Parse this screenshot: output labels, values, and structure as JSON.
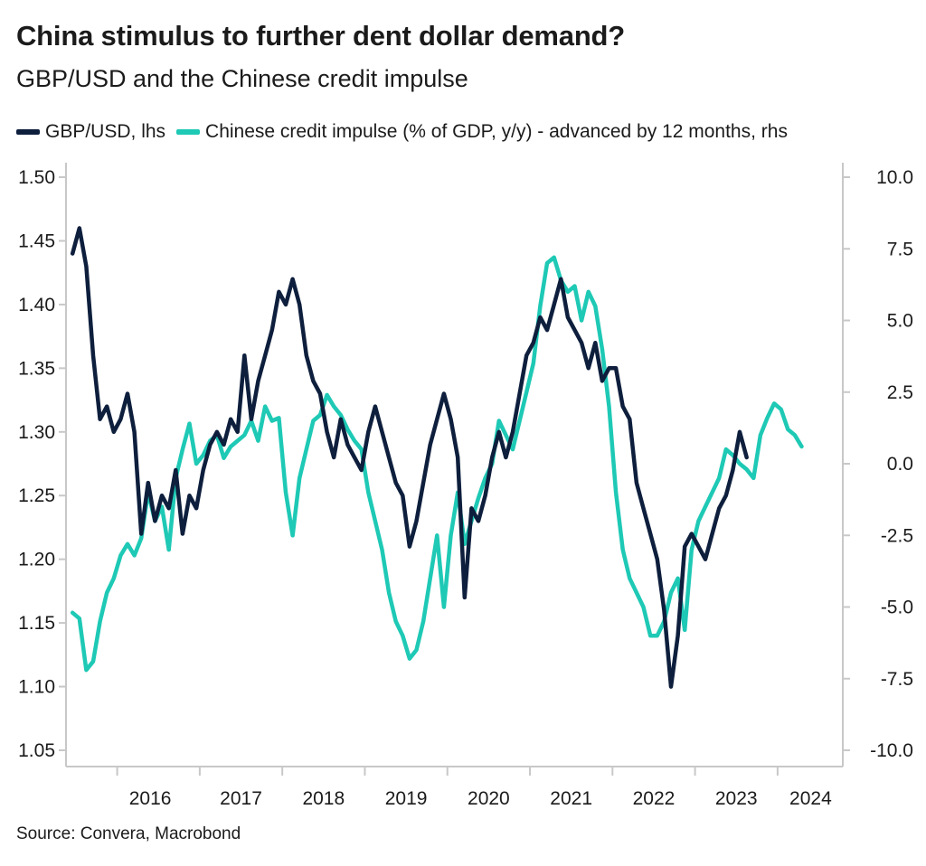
{
  "chart_data": {
    "type": "line",
    "title": "China stimulus to further dent dollar demand?",
    "subtitle": "GBP/USD and the Chinese credit impulse",
    "source": "Source: Convera, Macrobond",
    "grid": false,
    "legend_position": "top",
    "colors": {
      "gbpusd": "#0e1f3d",
      "impulse": "#1ec9b5",
      "axis": "#c8c8c8",
      "text": "#1b1b1b"
    },
    "x_axis": {
      "type": "date",
      "range": [
        "2015-06",
        "2024-12"
      ],
      "tick_labels": [
        "2016",
        "2017",
        "2018",
        "2019",
        "2020",
        "2021",
        "2022",
        "2023",
        "2024"
      ]
    },
    "y_left": {
      "label": "lhs",
      "range": [
        1.05,
        1.5
      ],
      "tick_labels": [
        "1.50",
        "1.45",
        "1.40",
        "1.35",
        "1.30",
        "1.25",
        "1.20",
        "1.15",
        "1.10",
        "1.05"
      ]
    },
    "y_right": {
      "label": "rhs",
      "range": [
        -10,
        10
      ],
      "tick_labels": [
        "10.0",
        "7.5",
        "5.0",
        "2.5",
        "0.0",
        "-2.5",
        "-5.0",
        "-7.5",
        "-10.0"
      ]
    },
    "series": [
      {
        "name": "GBP/USD, lhs",
        "axis": "left",
        "points": [
          [
            "2015-06",
            1.44
          ],
          [
            "2015-07",
            1.46
          ],
          [
            "2015-08",
            1.43
          ],
          [
            "2015-09",
            1.36
          ],
          [
            "2015-10",
            1.31
          ],
          [
            "2015-11",
            1.32
          ],
          [
            "2015-12",
            1.3
          ],
          [
            "2016-01",
            1.31
          ],
          [
            "2016-02",
            1.33
          ],
          [
            "2016-03",
            1.3
          ],
          [
            "2016-04",
            1.22
          ],
          [
            "2016-05",
            1.26
          ],
          [
            "2016-06",
            1.23
          ],
          [
            "2016-07",
            1.25
          ],
          [
            "2016-08",
            1.24
          ],
          [
            "2016-09",
            1.27
          ],
          [
            "2016-10",
            1.22
          ],
          [
            "2016-11",
            1.25
          ],
          [
            "2016-12",
            1.24
          ],
          [
            "2017-01",
            1.27
          ],
          [
            "2017-02",
            1.29
          ],
          [
            "2017-03",
            1.3
          ],
          [
            "2017-04",
            1.29
          ],
          [
            "2017-05",
            1.31
          ],
          [
            "2017-06",
            1.3
          ],
          [
            "2017-07",
            1.36
          ],
          [
            "2017-08",
            1.31
          ],
          [
            "2017-09",
            1.34
          ],
          [
            "2017-10",
            1.36
          ],
          [
            "2017-11",
            1.38
          ],
          [
            "2017-12",
            1.41
          ],
          [
            "2018-01",
            1.4
          ],
          [
            "2018-02",
            1.42
          ],
          [
            "2018-03",
            1.4
          ],
          [
            "2018-04",
            1.36
          ],
          [
            "2018-05",
            1.34
          ],
          [
            "2018-06",
            1.33
          ],
          [
            "2018-07",
            1.3
          ],
          [
            "2018-08",
            1.28
          ],
          [
            "2018-09",
            1.31
          ],
          [
            "2018-10",
            1.29
          ],
          [
            "2018-11",
            1.28
          ],
          [
            "2018-12",
            1.27
          ],
          [
            "2019-01",
            1.3
          ],
          [
            "2019-02",
            1.32
          ],
          [
            "2019-03",
            1.3
          ],
          [
            "2019-04",
            1.28
          ],
          [
            "2019-05",
            1.26
          ],
          [
            "2019-06",
            1.25
          ],
          [
            "2019-07",
            1.21
          ],
          [
            "2019-08",
            1.23
          ],
          [
            "2019-09",
            1.26
          ],
          [
            "2019-10",
            1.29
          ],
          [
            "2019-11",
            1.31
          ],
          [
            "2019-12",
            1.33
          ],
          [
            "2020-01",
            1.31
          ],
          [
            "2020-02",
            1.28
          ],
          [
            "2020-03",
            1.17
          ],
          [
            "2020-04",
            1.24
          ],
          [
            "2020-05",
            1.23
          ],
          [
            "2020-06",
            1.25
          ],
          [
            "2020-07",
            1.28
          ],
          [
            "2020-08",
            1.3
          ],
          [
            "2020-09",
            1.28
          ],
          [
            "2020-10",
            1.3
          ],
          [
            "2020-11",
            1.33
          ],
          [
            "2020-12",
            1.36
          ],
          [
            "2021-01",
            1.37
          ],
          [
            "2021-02",
            1.39
          ],
          [
            "2021-03",
            1.38
          ],
          [
            "2021-04",
            1.4
          ],
          [
            "2021-05",
            1.42
          ],
          [
            "2021-06",
            1.39
          ],
          [
            "2021-07",
            1.38
          ],
          [
            "2021-08",
            1.37
          ],
          [
            "2021-09",
            1.35
          ],
          [
            "2021-10",
            1.37
          ],
          [
            "2021-11",
            1.34
          ],
          [
            "2021-12",
            1.35
          ],
          [
            "2022-01",
            1.35
          ],
          [
            "2022-02",
            1.32
          ],
          [
            "2022-03",
            1.31
          ],
          [
            "2022-04",
            1.26
          ],
          [
            "2022-05",
            1.24
          ],
          [
            "2022-06",
            1.22
          ],
          [
            "2022-07",
            1.2
          ],
          [
            "2022-08",
            1.16
          ],
          [
            "2022-09",
            1.1
          ],
          [
            "2022-10",
            1.14
          ],
          [
            "2022-11",
            1.21
          ],
          [
            "2022-12",
            1.22
          ],
          [
            "2023-01",
            1.21
          ],
          [
            "2023-02",
            1.2
          ],
          [
            "2023-03",
            1.22
          ],
          [
            "2023-04",
            1.24
          ],
          [
            "2023-05",
            1.25
          ],
          [
            "2023-06",
            1.27
          ],
          [
            "2023-07",
            1.3
          ],
          [
            "2023-08",
            1.28
          ]
        ]
      },
      {
        "name": "Chinese credit impulse (% of GDP, y/y) - advanced by 12 months, rhs",
        "axis": "right",
        "points": [
          [
            "2015-06",
            -5.2
          ],
          [
            "2015-07",
            -5.4
          ],
          [
            "2015-08",
            -7.2
          ],
          [
            "2015-09",
            -6.9
          ],
          [
            "2015-10",
            -5.5
          ],
          [
            "2015-11",
            -4.5
          ],
          [
            "2015-12",
            -4.0
          ],
          [
            "2016-01",
            -3.2
          ],
          [
            "2016-02",
            -2.8
          ],
          [
            "2016-03",
            -3.2
          ],
          [
            "2016-04",
            -2.6
          ],
          [
            "2016-05",
            -1.0
          ],
          [
            "2016-06",
            -2.0
          ],
          [
            "2016-07",
            -1.5
          ],
          [
            "2016-08",
            -3.0
          ],
          [
            "2016-09",
            -0.5
          ],
          [
            "2016-10",
            0.5
          ],
          [
            "2016-11",
            1.4
          ],
          [
            "2016-12",
            0.0
          ],
          [
            "2017-01",
            0.3
          ],
          [
            "2017-02",
            0.8
          ],
          [
            "2017-03",
            1.0
          ],
          [
            "2017-04",
            0.2
          ],
          [
            "2017-05",
            0.6
          ],
          [
            "2017-06",
            0.8
          ],
          [
            "2017-07",
            1.0
          ],
          [
            "2017-08",
            1.5
          ],
          [
            "2017-09",
            0.8
          ],
          [
            "2017-10",
            2.0
          ],
          [
            "2017-11",
            1.5
          ],
          [
            "2017-12",
            1.6
          ],
          [
            "2018-01",
            -1.0
          ],
          [
            "2018-02",
            -2.5
          ],
          [
            "2018-03",
            -0.5
          ],
          [
            "2018-04",
            0.5
          ],
          [
            "2018-05",
            1.5
          ],
          [
            "2018-06",
            1.7
          ],
          [
            "2018-07",
            2.4
          ],
          [
            "2018-08",
            2.0
          ],
          [
            "2018-09",
            1.7
          ],
          [
            "2018-10",
            1.2
          ],
          [
            "2018-11",
            0.8
          ],
          [
            "2018-12",
            0.5
          ],
          [
            "2019-01",
            -1.0
          ],
          [
            "2019-02",
            -2.0
          ],
          [
            "2019-03",
            -3.0
          ],
          [
            "2019-04",
            -4.5
          ],
          [
            "2019-05",
            -5.5
          ],
          [
            "2019-06",
            -6.0
          ],
          [
            "2019-07",
            -6.8
          ],
          [
            "2019-08",
            -6.5
          ],
          [
            "2019-09",
            -5.5
          ],
          [
            "2019-10",
            -4.0
          ],
          [
            "2019-11",
            -2.5
          ],
          [
            "2019-12",
            -5.0
          ],
          [
            "2020-01",
            -2.5
          ],
          [
            "2020-02",
            -1.0
          ],
          [
            "2020-03",
            -2.8
          ],
          [
            "2020-04",
            -2.0
          ],
          [
            "2020-05",
            -1.2
          ],
          [
            "2020-06",
            -0.5
          ],
          [
            "2020-07",
            0.0
          ],
          [
            "2020-08",
            1.5
          ],
          [
            "2020-09",
            1.0
          ],
          [
            "2020-10",
            0.5
          ],
          [
            "2020-11",
            1.5
          ],
          [
            "2020-12",
            2.5
          ],
          [
            "2021-01",
            3.5
          ],
          [
            "2021-02",
            5.5
          ],
          [
            "2021-03",
            7.0
          ],
          [
            "2021-04",
            7.2
          ],
          [
            "2021-05",
            6.4
          ],
          [
            "2021-06",
            6.0
          ],
          [
            "2021-07",
            6.2
          ],
          [
            "2021-08",
            5.0
          ],
          [
            "2021-09",
            6.0
          ],
          [
            "2021-10",
            5.5
          ],
          [
            "2021-11",
            4.0
          ],
          [
            "2021-12",
            2.0
          ],
          [
            "2022-01",
            -1.0
          ],
          [
            "2022-02",
            -3.0
          ],
          [
            "2022-03",
            -4.0
          ],
          [
            "2022-04",
            -4.5
          ],
          [
            "2022-05",
            -5.0
          ],
          [
            "2022-06",
            -6.0
          ],
          [
            "2022-07",
            -6.0
          ],
          [
            "2022-08",
            -5.5
          ],
          [
            "2022-09",
            -4.5
          ],
          [
            "2022-10",
            -4.0
          ],
          [
            "2022-11",
            -5.8
          ],
          [
            "2022-12",
            -3.0
          ],
          [
            "2023-01",
            -2.0
          ],
          [
            "2023-02",
            -1.5
          ],
          [
            "2023-03",
            -1.0
          ],
          [
            "2023-04",
            -0.5
          ],
          [
            "2023-05",
            0.5
          ],
          [
            "2023-06",
            0.3
          ],
          [
            "2023-07",
            0.0
          ],
          [
            "2023-08",
            -0.2
          ],
          [
            "2023-09",
            -0.5
          ],
          [
            "2023-10",
            1.0
          ],
          [
            "2023-11",
            1.6
          ],
          [
            "2023-12",
            2.1
          ],
          [
            "2024-01",
            1.9
          ],
          [
            "2024-02",
            1.2
          ],
          [
            "2024-03",
            1.0
          ],
          [
            "2024-04",
            0.6
          ]
        ]
      }
    ]
  }
}
